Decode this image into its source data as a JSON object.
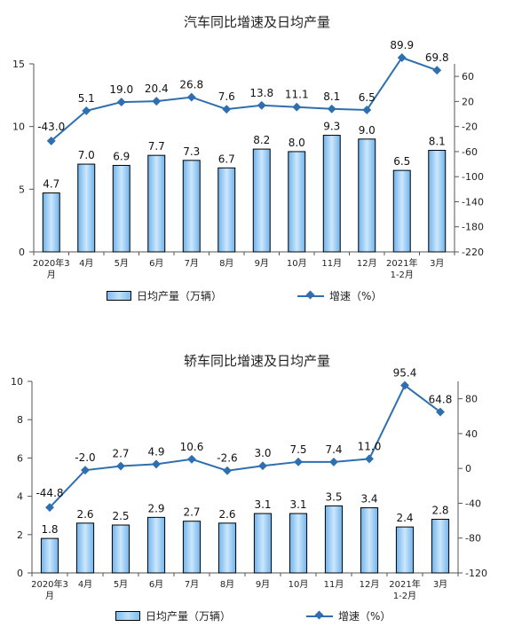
{
  "charts": [
    {
      "title": "汽车同比增速及日均产量",
      "legend_bar": "日均产量（万辆）",
      "legend_line": "增速（%）"
    },
    {
      "title": "轿车同比增速及日均产量",
      "legend_bar": "日均产量（万辆）",
      "legend_line": "增速（%）"
    }
  ],
  "colors": {
    "bar_fill": "#9fd0f7",
    "bar_edge": "#000000",
    "line": "#2f6fb0"
  },
  "chart_data": [
    {
      "type": "bar+line",
      "title": "汽车同比增速及日均产量",
      "categories": [
        [
          "2020年3",
          "月"
        ],
        [
          "4月"
        ],
        [
          "5月"
        ],
        [
          "6月"
        ],
        [
          "7月"
        ],
        [
          "8月"
        ],
        [
          "9月"
        ],
        [
          "10月"
        ],
        [
          "11月"
        ],
        [
          "12月"
        ],
        [
          "2021年",
          "1-2月"
        ],
        [
          "3月"
        ]
      ],
      "series": [
        {
          "name": "日均产量（万辆）",
          "axis": "left",
          "kind": "bar",
          "values": [
            4.7,
            7.0,
            6.9,
            7.7,
            7.3,
            6.7,
            8.2,
            8.0,
            9.3,
            9.0,
            6.5,
            8.1
          ],
          "labels": [
            "4.7",
            "7.0",
            "6.9",
            "7.7",
            "7.3",
            "6.7",
            "8.2",
            "8.0",
            "9.3",
            "9.0",
            "6.5",
            "8.1"
          ]
        },
        {
          "name": "增速（%）",
          "axis": "right",
          "kind": "line",
          "values": [
            -43.0,
            5.1,
            19.0,
            20.4,
            26.8,
            7.6,
            13.8,
            11.1,
            8.1,
            6.5,
            89.9,
            69.8
          ],
          "labels": [
            "-43.0",
            "5.1",
            "19.0",
            "20.4",
            "26.8",
            "7.6",
            "13.8",
            "11.1",
            "8.1",
            "6.5",
            "89.9",
            "69.8"
          ]
        }
      ],
      "left_axis": {
        "min": 0,
        "max": 15,
        "ticks": [
          0,
          5,
          10,
          15
        ]
      },
      "right_axis": {
        "min": -220,
        "max": 80,
        "ticks": [
          60,
          20,
          -20,
          -60,
          -100,
          -140,
          -180,
          -220
        ]
      }
    },
    {
      "type": "bar+line",
      "title": "轿车同比增速及日均产量",
      "categories": [
        [
          "2020年3",
          "月"
        ],
        [
          "4月"
        ],
        [
          "5月"
        ],
        [
          "6月"
        ],
        [
          "7月"
        ],
        [
          "8月"
        ],
        [
          "9月"
        ],
        [
          "10月"
        ],
        [
          "11月"
        ],
        [
          "12月"
        ],
        [
          "2021年",
          "1-2月"
        ],
        [
          "3月"
        ]
      ],
      "series": [
        {
          "name": "日均产量（万辆）",
          "axis": "left",
          "kind": "bar",
          "values": [
            1.8,
            2.6,
            2.5,
            2.9,
            2.7,
            2.6,
            3.1,
            3.1,
            3.5,
            3.4,
            2.4,
            2.8
          ],
          "labels": [
            "1.8",
            "2.6",
            "2.5",
            "2.9",
            "2.7",
            "2.6",
            "3.1",
            "3.1",
            "3.5",
            "3.4",
            "2.4",
            "2.8"
          ]
        },
        {
          "name": "增速（%）",
          "axis": "right",
          "kind": "line",
          "values": [
            -44.8,
            -2.0,
            2.7,
            4.9,
            10.6,
            -2.6,
            3.0,
            7.5,
            7.4,
            11.0,
            95.4,
            64.8
          ],
          "labels": [
            "-44.8",
            "-2.0",
            "2.7",
            "4.9",
            "10.6",
            "-2.6",
            "3.0",
            "7.5",
            "7.4",
            "11.0",
            "95.4",
            "64.8"
          ]
        }
      ],
      "left_axis": {
        "min": 0,
        "max": 10,
        "ticks": [
          0,
          2,
          4,
          6,
          8,
          10
        ]
      },
      "right_axis": {
        "min": -120,
        "max": 100,
        "ticks": [
          80,
          40,
          0,
          -40,
          -80,
          -120
        ]
      }
    }
  ]
}
